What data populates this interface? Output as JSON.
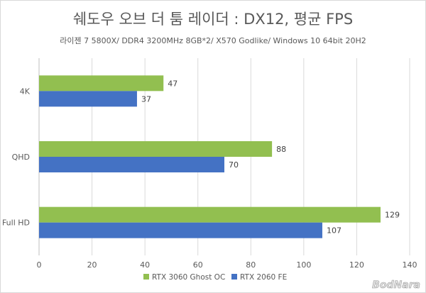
{
  "chart_data": {
    "type": "bar",
    "orientation": "horizontal",
    "title": "쉐도우 오브 더 툼 레이더 : DX12, 평균 FPS",
    "subtitle": "라이젠 7 5800X/ DDR4 3200MHz 8GB*2/ X570 Godlike/ Windows 10 64bit 20H2",
    "categories": [
      "4K",
      "QHD",
      "Full HD"
    ],
    "series": [
      {
        "name": "RTX 3060 Ghost OC",
        "values": [
          47,
          88,
          129
        ],
        "color": "#92bf50"
      },
      {
        "name": "RTX 2060 FE",
        "values": [
          37,
          70,
          107
        ],
        "color": "#4472c4"
      }
    ],
    "xlim": [
      0,
      140
    ],
    "xticks": [
      "0",
      "20",
      "40",
      "60",
      "80",
      "100",
      "120",
      "140"
    ],
    "grid": true,
    "legend_position": "bottom",
    "data_labels": true
  },
  "watermark": "BodNara"
}
